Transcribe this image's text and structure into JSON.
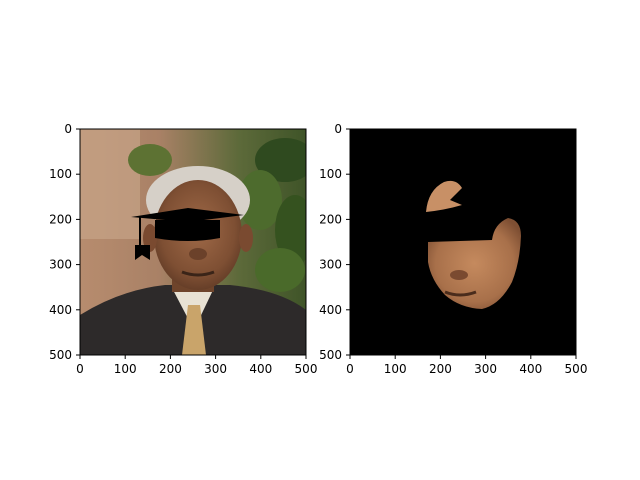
{
  "chart_data": [
    {
      "type": "image",
      "panel": "left",
      "content": "photo of an older man in a dark suit with a black graduation mortarboard drawn over his eyes",
      "xlim": [
        0,
        500
      ],
      "ylim": [
        500,
        0
      ],
      "x_ticks": [
        "0",
        "100",
        "200",
        "300",
        "400",
        "500"
      ],
      "y_ticks": [
        "0",
        "100",
        "200",
        "300",
        "400",
        "500"
      ],
      "title": "",
      "xlabel": "",
      "ylabel": ""
    },
    {
      "type": "image",
      "panel": "right",
      "content": "segmented face region on black background with a black band over the eyes",
      "xlim": [
        0,
        500
      ],
      "ylim": [
        500,
        0
      ],
      "x_ticks": [
        "0",
        "100",
        "200",
        "300",
        "400",
        "500"
      ],
      "y_ticks": [
        "0",
        "100",
        "200",
        "300",
        "400",
        "500"
      ],
      "title": "",
      "xlabel": "",
      "ylabel": ""
    }
  ],
  "colors": {
    "background": "#ffffff",
    "axis": "#000000",
    "mask_background": "#000000",
    "suit": "#2d2a2a",
    "skin": "#8a5a3c",
    "hair": "#d6d0c8",
    "hat": "#000000"
  }
}
